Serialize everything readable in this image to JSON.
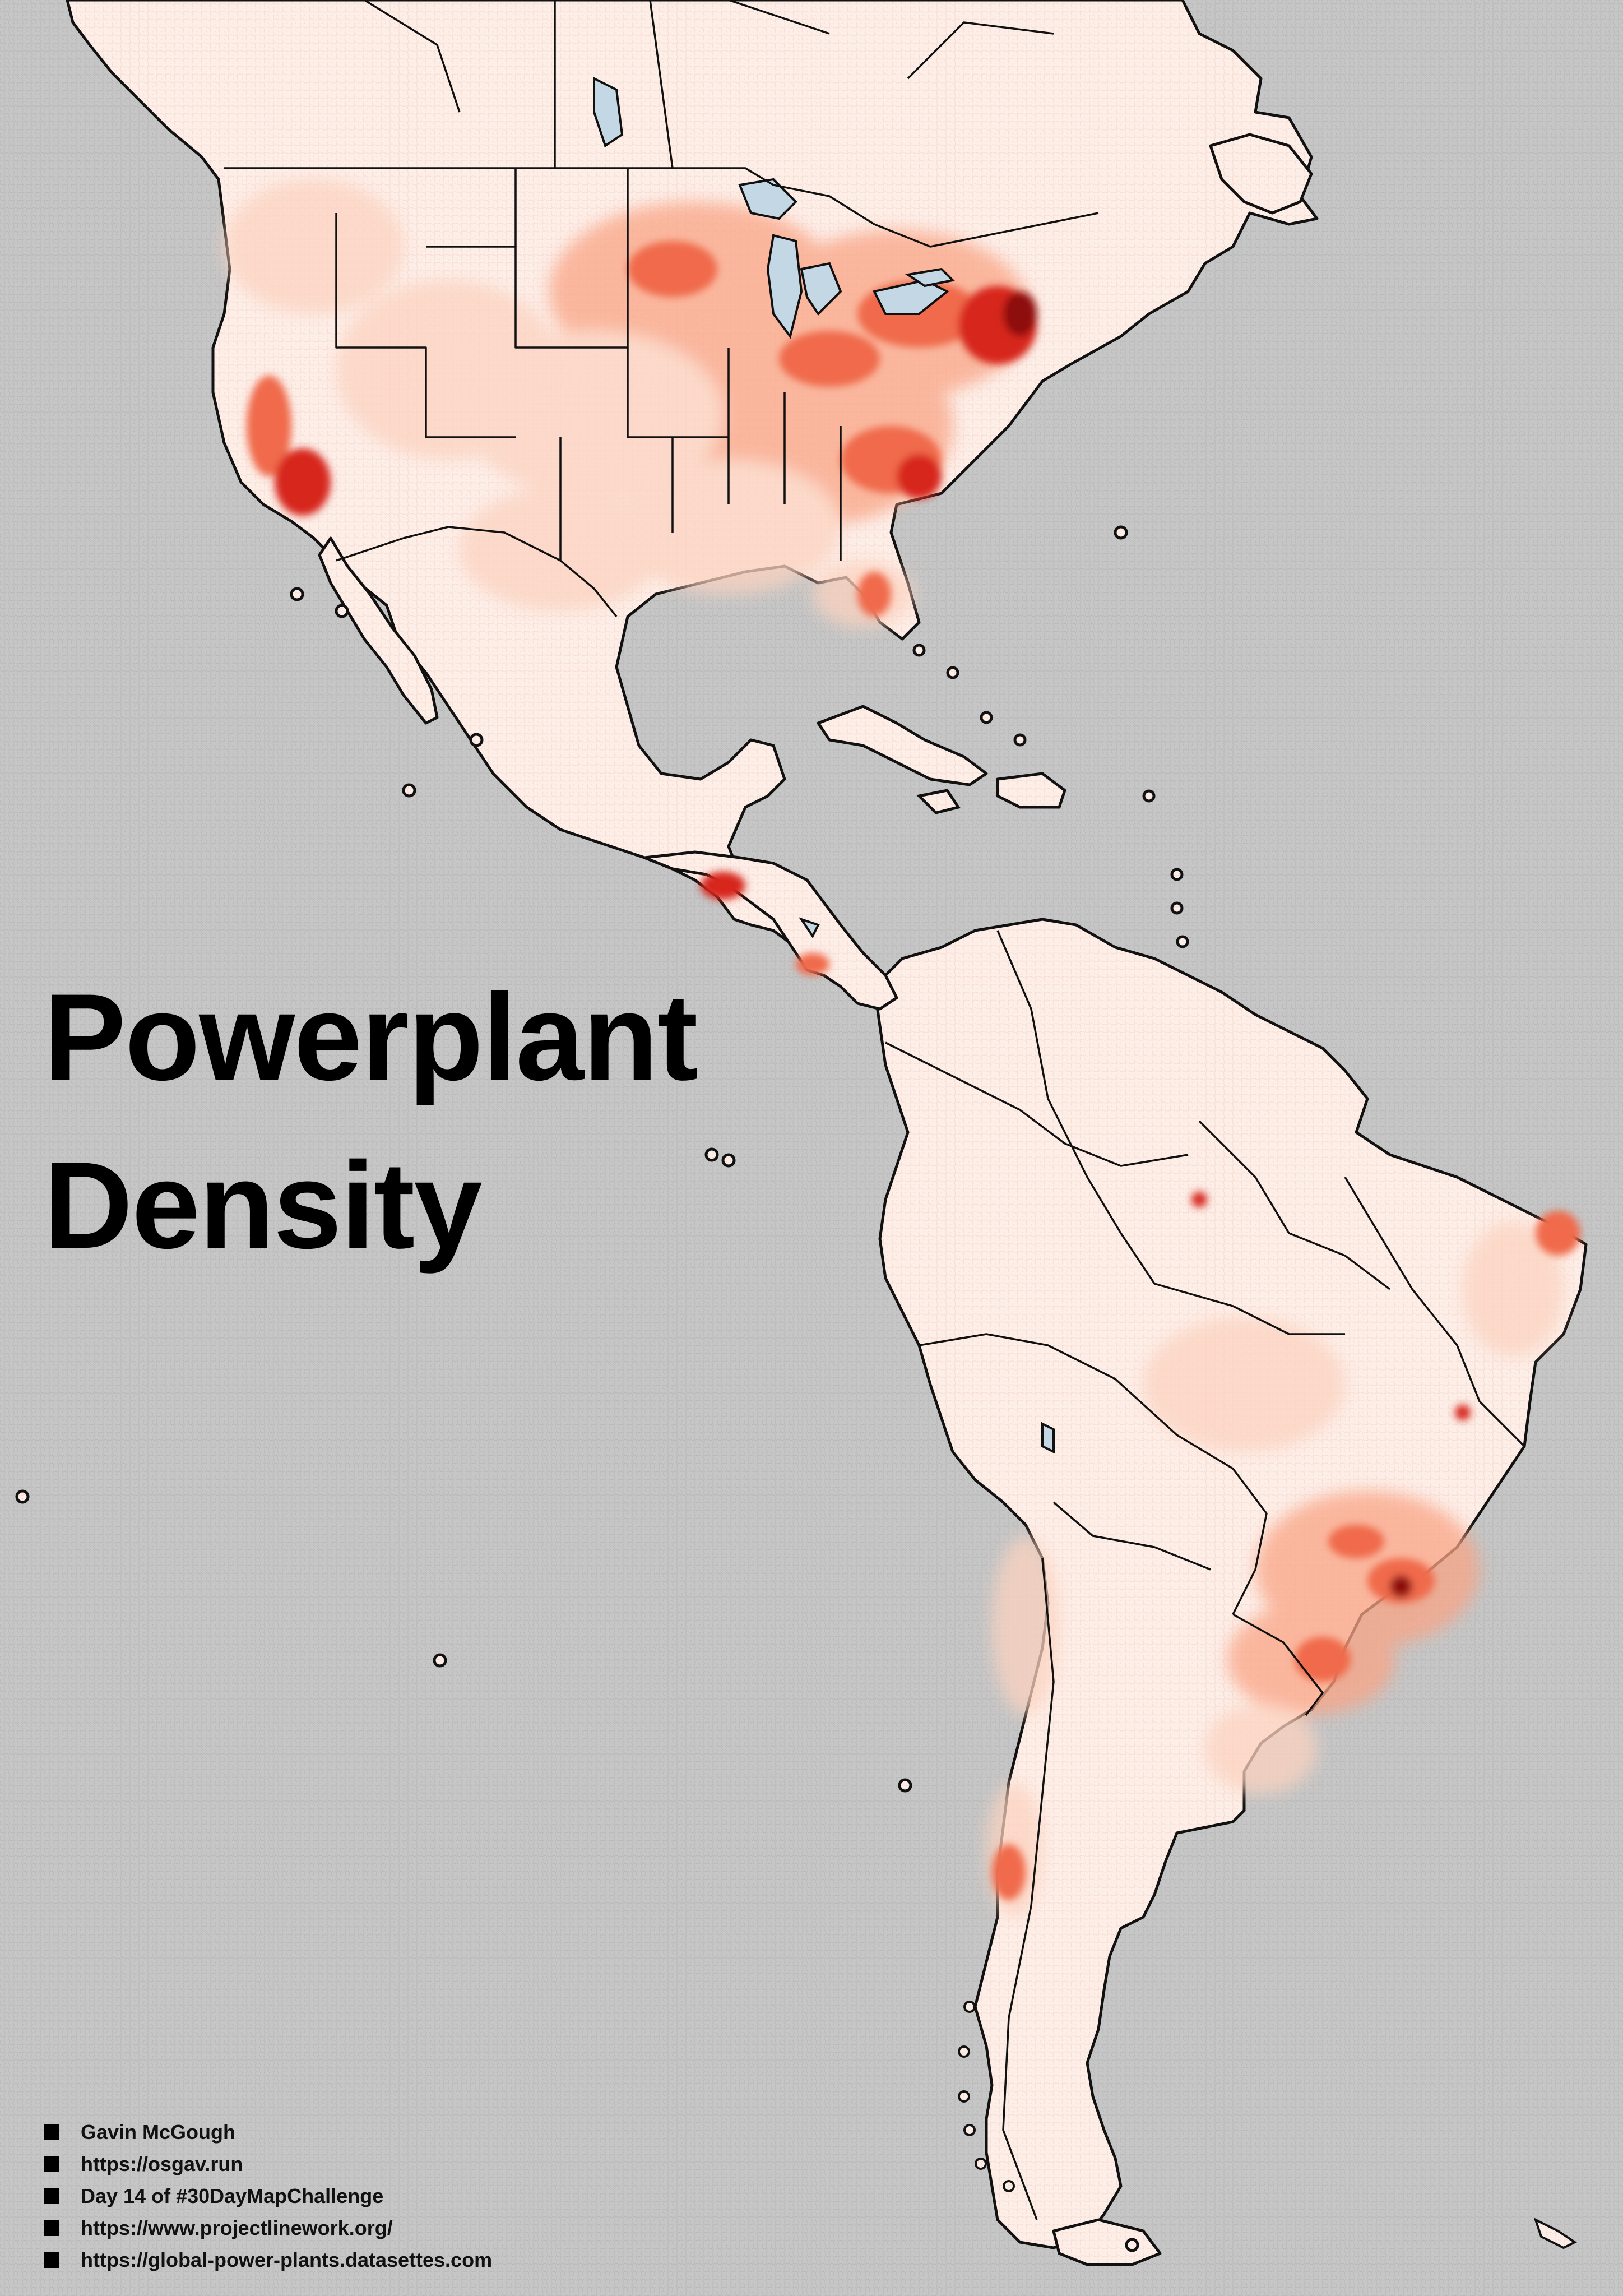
{
  "title": {
    "line1": "Powerplant",
    "line2": "Density"
  },
  "credits": [
    "Gavin McGough",
    "https://osgav.run",
    "Day 14 of #30DayMapChallenge",
    "https://www.projectlinework.org/",
    "https://global-power-plants.datasettes.com"
  ],
  "colors": {
    "ocean": "#c6c6c6",
    "land_base": "#fdeee8",
    "low": "#fcd3c0",
    "mid": "#f9a586",
    "high": "#f06a4b",
    "very_high": "#d7281e",
    "max": "#8e0a10",
    "lakes": "#c4d7e4",
    "borders": "#111111"
  },
  "legend_icon": "square-bullet-icon"
}
